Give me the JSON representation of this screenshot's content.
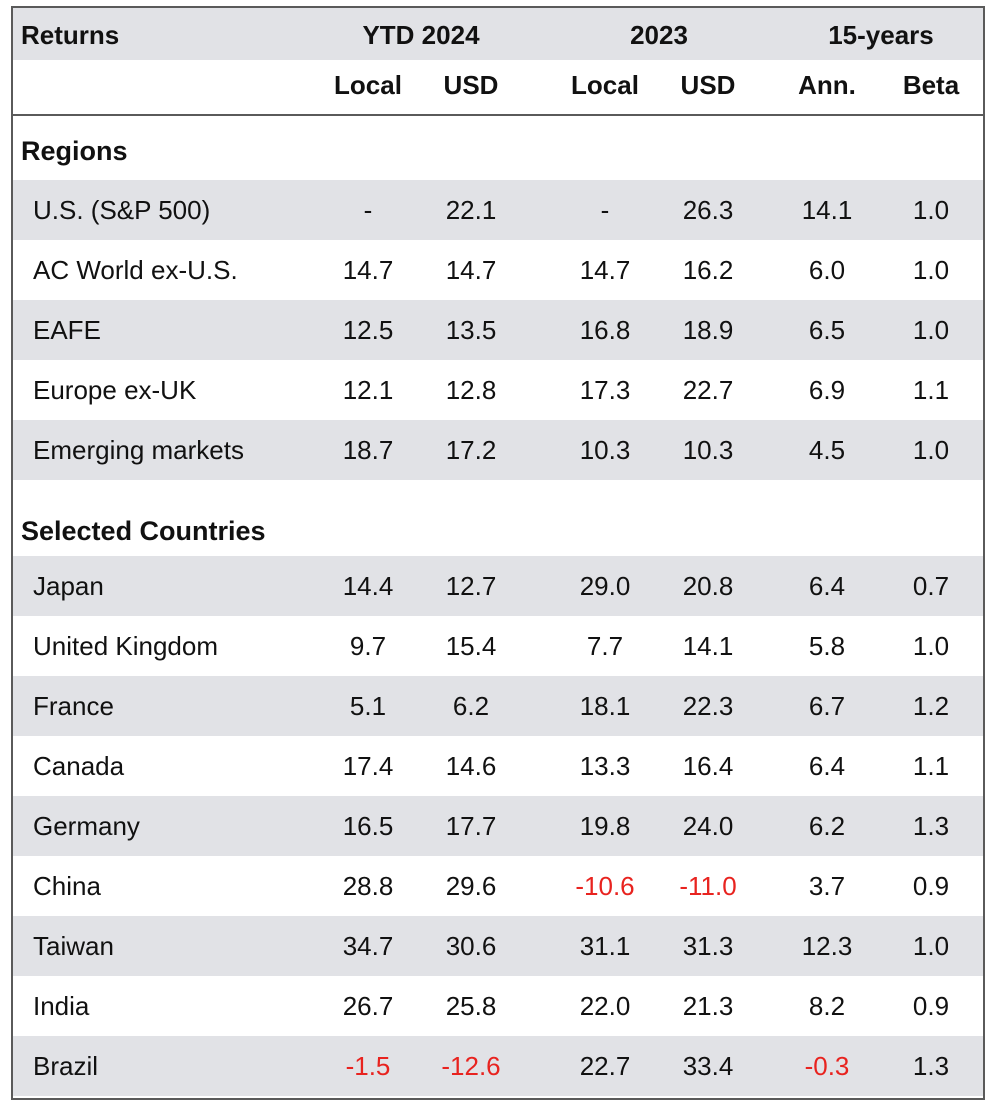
{
  "header": {
    "returns_label": "Returns",
    "group_ytd": "YTD 2024",
    "group_2023": "2023",
    "group_15y": "15-years",
    "sub_local_1": "Local",
    "sub_usd_1": "USD",
    "sub_local_2": "Local",
    "sub_usd_2": "USD",
    "sub_ann": "Ann.",
    "sub_beta": "Beta"
  },
  "sections": {
    "regions": "Regions",
    "countries": "Selected Countries"
  },
  "chart_data": {
    "type": "table",
    "columns": [
      "YTD 2024 Local",
      "YTD 2024 USD",
      "2023 Local",
      "2023 USD",
      "15-years Ann.",
      "15-years Beta"
    ],
    "regions": [
      {
        "label": "U.S. (S&P 500)",
        "values": [
          "-",
          "22.1",
          "-",
          "26.3",
          "14.1",
          "1.0"
        ]
      },
      {
        "label": "AC World ex-U.S.",
        "values": [
          "14.7",
          "14.7",
          "14.7",
          "16.2",
          "6.0",
          "1.0"
        ]
      },
      {
        "label": "EAFE",
        "values": [
          "12.5",
          "13.5",
          "16.8",
          "18.9",
          "6.5",
          "1.0"
        ]
      },
      {
        "label": "Europe ex-UK",
        "values": [
          "12.1",
          "12.8",
          "17.3",
          "22.7",
          "6.9",
          "1.1"
        ]
      },
      {
        "label": "Emerging markets",
        "values": [
          "18.7",
          "17.2",
          "10.3",
          "10.3",
          "4.5",
          "1.0"
        ]
      }
    ],
    "countries": [
      {
        "label": "Japan",
        "values": [
          "14.4",
          "12.7",
          "29.0",
          "20.8",
          "6.4",
          "0.7"
        ]
      },
      {
        "label": "United Kingdom",
        "values": [
          "9.7",
          "15.4",
          "7.7",
          "14.1",
          "5.8",
          "1.0"
        ]
      },
      {
        "label": "France",
        "values": [
          "5.1",
          "6.2",
          "18.1",
          "22.3",
          "6.7",
          "1.2"
        ]
      },
      {
        "label": "Canada",
        "values": [
          "17.4",
          "14.6",
          "13.3",
          "16.4",
          "6.4",
          "1.1"
        ]
      },
      {
        "label": "Germany",
        "values": [
          "16.5",
          "17.7",
          "19.8",
          "24.0",
          "6.2",
          "1.3"
        ]
      },
      {
        "label": "China",
        "values": [
          "28.8",
          "29.6",
          "-10.6",
          "-11.0",
          "3.7",
          "0.9"
        ]
      },
      {
        "label": "Taiwan",
        "values": [
          "34.7",
          "30.6",
          "31.1",
          "31.3",
          "12.3",
          "1.0"
        ]
      },
      {
        "label": "India",
        "values": [
          "26.7",
          "25.8",
          "22.0",
          "21.3",
          "8.2",
          "0.9"
        ]
      },
      {
        "label": "Brazil",
        "values": [
          "-1.5",
          "-12.6",
          "22.7",
          "33.4",
          "-0.3",
          "1.3"
        ]
      }
    ]
  },
  "colors": {
    "header_bg": "#e1e2e6",
    "row_shade": "#e1e2e6",
    "negative": "#e8231f",
    "border": "#5a5a5a"
  }
}
